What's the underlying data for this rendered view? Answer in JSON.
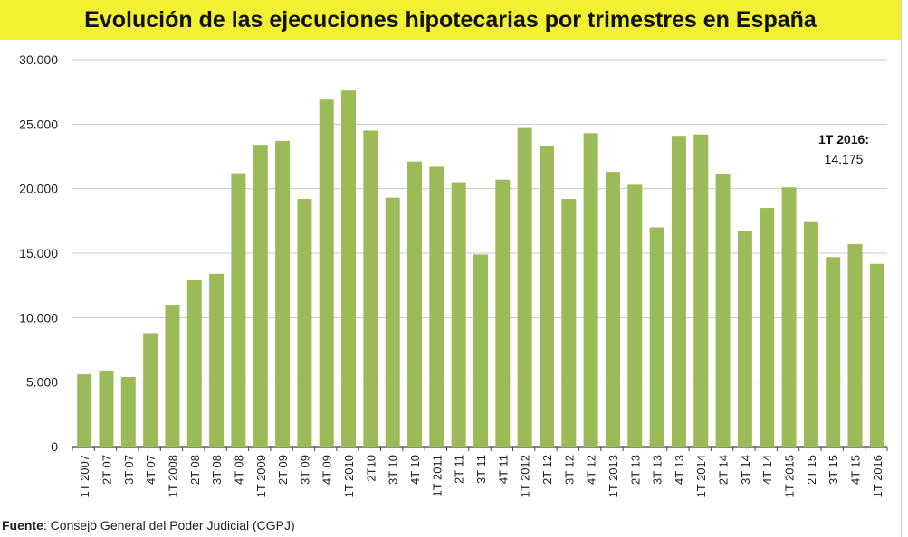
{
  "title": "Evolución de las ejecuciones hipotecarias por trimestres en España",
  "source": {
    "label": "Fuente",
    "text": ": Consejo General del Poder Judicial (CGPJ)"
  },
  "annotation": {
    "label": "1T 2016:",
    "value": "14.175"
  },
  "colors": {
    "bar": "#9bbb59",
    "title_bg": "#f1f132",
    "grid": "#c8c8c8",
    "axis": "#444444"
  },
  "chart_data": {
    "type": "bar",
    "categories": [
      "1T 2007",
      "2T 07",
      "3T 07",
      "4T 07",
      "1T 2008",
      "2T 08",
      "3T 08",
      "4T 08",
      "1T 2009",
      "2T 09",
      "3T 09",
      "4T 09",
      "1T 2010",
      "2T10",
      "3T 10",
      "4T 10",
      "1T 2011",
      "2T 11",
      "3T 11",
      "4T 11",
      "1T 2012",
      "2T 12",
      "3T 12",
      "4T 12",
      "1T 2013",
      "2T 13",
      "3T 13",
      "4T 13",
      "1T 2014",
      "2T 14",
      "3T 14",
      "4T 14",
      "1T 2015",
      "2T 15",
      "3T 15",
      "4T 15",
      "1T 2016"
    ],
    "values": [
      5600,
      5900,
      5400,
      8800,
      11000,
      12900,
      13400,
      21200,
      23400,
      23700,
      19200,
      26900,
      27600,
      24500,
      19300,
      22100,
      21700,
      20500,
      14900,
      20700,
      24700,
      23300,
      19200,
      24300,
      21300,
      20300,
      17000,
      24100,
      24200,
      21100,
      16700,
      18500,
      20100,
      17400,
      14700,
      15700,
      14175
    ],
    "yticks": [
      "0",
      "5.000",
      "10.000",
      "15.000",
      "20.000",
      "25.000",
      "30.000"
    ],
    "ylim": [
      0,
      30000
    ],
    "grid": true,
    "title": "Evolución de las ejecuciones hipotecarias por trimestres en España",
    "xlabel": "",
    "ylabel": ""
  }
}
